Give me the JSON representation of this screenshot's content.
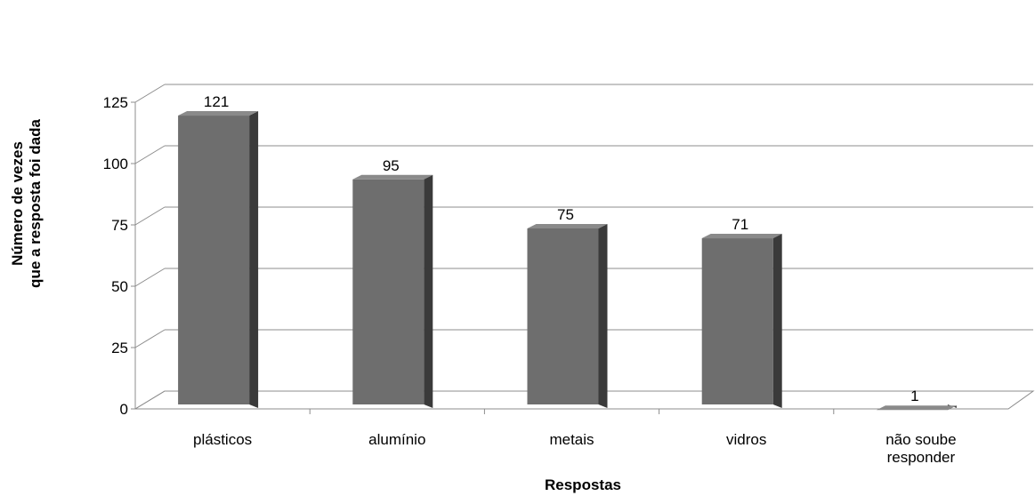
{
  "chart_data": {
    "type": "bar",
    "categories": [
      "plásticos",
      "alumínio",
      "metais",
      "vidros",
      "não soube responder"
    ],
    "category_lines": [
      [
        "plásticos"
      ],
      [
        "alumínio"
      ],
      [
        "metais"
      ],
      [
        "vidros"
      ],
      [
        "não soube",
        "responder"
      ]
    ],
    "values": [
      121,
      95,
      75,
      71,
      1
    ],
    "data_labels": [
      "121",
      "95",
      "75",
      "71",
      "1"
    ],
    "yticks": [
      "0",
      "25",
      "50",
      "75",
      "100",
      "125"
    ],
    "ylim": [
      0,
      125
    ],
    "xlabel": "Respostas",
    "ylabel_lines": [
      "Número de vezes",
      "que a resposta foi dada"
    ],
    "grid": true,
    "legend": "none",
    "colors": {
      "bar_front": "#6e6e6e",
      "bar_side": "#3a3a3a",
      "bar_top": "#8a8a8a",
      "grid": "#8c8c8c",
      "axis": "#8c8c8c"
    }
  }
}
